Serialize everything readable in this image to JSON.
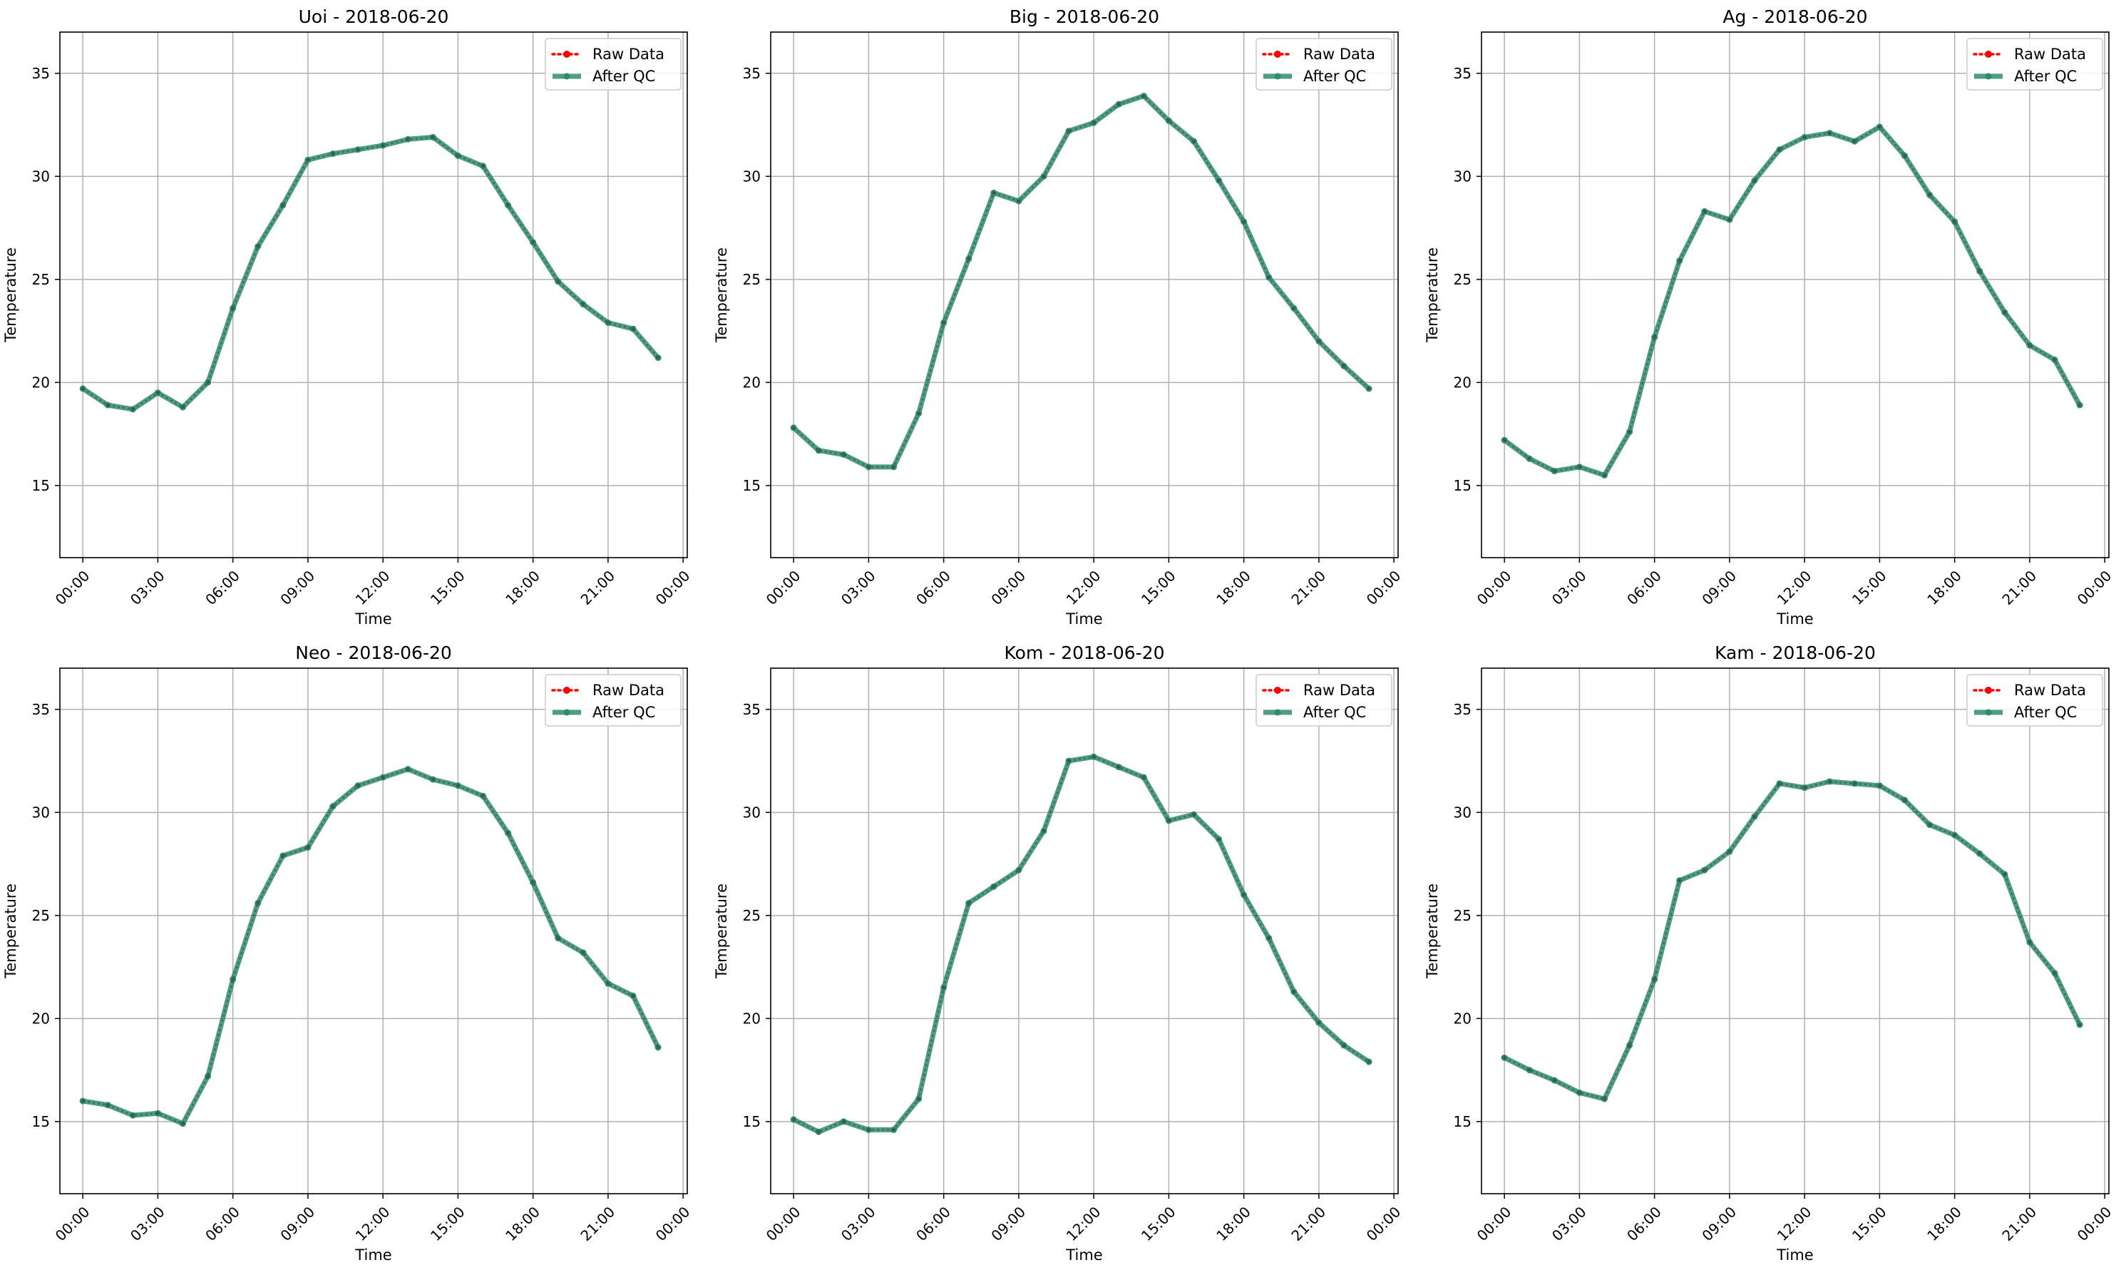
{
  "chart_data": [
    {
      "type": "line",
      "title": "Uoi - 2018-06-20",
      "xlabel": "Time",
      "ylabel": "Temperature",
      "x": [
        "00:00",
        "01:00",
        "02:00",
        "03:00",
        "04:00",
        "05:00",
        "06:00",
        "07:00",
        "08:00",
        "09:00",
        "10:00",
        "11:00",
        "12:00",
        "13:00",
        "14:00",
        "15:00",
        "16:00",
        "17:00",
        "18:00",
        "19:00",
        "20:00",
        "21:00",
        "22:00",
        "23:00"
      ],
      "xticks": [
        "00:00",
        "03:00",
        "06:00",
        "09:00",
        "12:00",
        "15:00",
        "18:00",
        "21:00",
        "00:00"
      ],
      "xlim": [
        "23:05",
        "24:10"
      ],
      "yticks": [
        15,
        20,
        25,
        30,
        35
      ],
      "ylim": [
        11.5,
        37
      ],
      "grid": true,
      "legend": "upper-right",
      "series": [
        {
          "name": "Raw Data",
          "color": "#ff0000",
          "style": "dotted-markers",
          "values": [
            19.7,
            18.9,
            18.7,
            19.5,
            18.8,
            20.0,
            23.6,
            26.6,
            28.6,
            30.8,
            31.1,
            31.3,
            31.5,
            31.8,
            31.9,
            31.0,
            30.5,
            28.6,
            26.8,
            24.9,
            23.8,
            22.9,
            22.6,
            21.2
          ]
        },
        {
          "name": "After QC",
          "color": "#2e8b6f",
          "style": "solid-markers",
          "values": [
            19.7,
            18.9,
            18.7,
            19.5,
            18.8,
            20.0,
            23.6,
            26.6,
            28.6,
            30.8,
            31.1,
            31.3,
            31.5,
            31.8,
            31.9,
            31.0,
            30.5,
            28.6,
            26.8,
            24.9,
            23.8,
            22.9,
            22.6,
            21.2
          ]
        }
      ]
    },
    {
      "type": "line",
      "title": "Big - 2018-06-20",
      "xlabel": "Time",
      "ylabel": "Temperature",
      "x": [
        "00:00",
        "01:00",
        "02:00",
        "03:00",
        "04:00",
        "05:00",
        "06:00",
        "07:00",
        "08:00",
        "09:00",
        "10:00",
        "11:00",
        "12:00",
        "13:00",
        "14:00",
        "15:00",
        "16:00",
        "17:00",
        "18:00",
        "19:00",
        "20:00",
        "21:00",
        "22:00",
        "23:00"
      ],
      "xticks": [
        "00:00",
        "03:00",
        "06:00",
        "09:00",
        "12:00",
        "15:00",
        "18:00",
        "21:00",
        "00:00"
      ],
      "xlim": [
        "23:05",
        "24:10"
      ],
      "yticks": [
        15,
        20,
        25,
        30,
        35
      ],
      "ylim": [
        11.5,
        37
      ],
      "grid": true,
      "legend": "upper-right",
      "series": [
        {
          "name": "Raw Data",
          "color": "#ff0000",
          "style": "dotted-markers",
          "values": [
            17.8,
            16.7,
            16.5,
            15.9,
            15.9,
            18.5,
            22.9,
            26.0,
            29.2,
            28.8,
            30.0,
            32.2,
            32.6,
            33.5,
            33.9,
            32.7,
            31.7,
            29.8,
            27.8,
            25.1,
            23.6,
            22.0,
            20.8,
            19.7
          ]
        },
        {
          "name": "After QC",
          "color": "#2e8b6f",
          "style": "solid-markers",
          "values": [
            17.8,
            16.7,
            16.5,
            15.9,
            15.9,
            18.5,
            22.9,
            26.0,
            29.2,
            28.8,
            30.0,
            32.2,
            32.6,
            33.5,
            33.9,
            32.7,
            31.7,
            29.8,
            27.8,
            25.1,
            23.6,
            22.0,
            20.8,
            19.7
          ]
        }
      ]
    },
    {
      "type": "line",
      "title": "Ag - 2018-06-20",
      "xlabel": "Time",
      "ylabel": "Temperature",
      "x": [
        "00:00",
        "01:00",
        "02:00",
        "03:00",
        "04:00",
        "05:00",
        "06:00",
        "07:00",
        "08:00",
        "09:00",
        "10:00",
        "11:00",
        "12:00",
        "13:00",
        "14:00",
        "15:00",
        "16:00",
        "17:00",
        "18:00",
        "19:00",
        "20:00",
        "21:00",
        "22:00",
        "23:00"
      ],
      "xticks": [
        "00:00",
        "03:00",
        "06:00",
        "09:00",
        "12:00",
        "15:00",
        "18:00",
        "21:00",
        "00:00"
      ],
      "xlim": [
        "23:05",
        "24:10"
      ],
      "yticks": [
        15,
        20,
        25,
        30,
        35
      ],
      "ylim": [
        11.5,
        37
      ],
      "grid": true,
      "legend": "upper-right",
      "series": [
        {
          "name": "Raw Data",
          "color": "#ff0000",
          "style": "dotted-markers",
          "values": [
            17.2,
            16.3,
            15.7,
            15.9,
            15.5,
            17.6,
            22.2,
            25.9,
            28.3,
            27.9,
            29.8,
            31.3,
            31.9,
            32.1,
            31.7,
            32.4,
            31.0,
            29.1,
            27.8,
            25.4,
            23.4,
            21.8,
            21.1,
            18.9
          ]
        },
        {
          "name": "After QC",
          "color": "#2e8b6f",
          "style": "solid-markers",
          "values": [
            17.2,
            16.3,
            15.7,
            15.9,
            15.5,
            17.6,
            22.2,
            25.9,
            28.3,
            27.9,
            29.8,
            31.3,
            31.9,
            32.1,
            31.7,
            32.4,
            31.0,
            29.1,
            27.8,
            25.4,
            23.4,
            21.8,
            21.1,
            18.9
          ]
        }
      ]
    },
    {
      "type": "line",
      "title": "Neo - 2018-06-20",
      "xlabel": "Time",
      "ylabel": "Temperature",
      "x": [
        "00:00",
        "01:00",
        "02:00",
        "03:00",
        "04:00",
        "05:00",
        "06:00",
        "07:00",
        "08:00",
        "09:00",
        "10:00",
        "11:00",
        "12:00",
        "13:00",
        "14:00",
        "15:00",
        "16:00",
        "17:00",
        "18:00",
        "19:00",
        "20:00",
        "21:00",
        "22:00",
        "23:00"
      ],
      "xticks": [
        "00:00",
        "03:00",
        "06:00",
        "09:00",
        "12:00",
        "15:00",
        "18:00",
        "21:00",
        "00:00"
      ],
      "xlim": [
        "23:05",
        "24:10"
      ],
      "yticks": [
        15,
        20,
        25,
        30,
        35
      ],
      "ylim": [
        11.5,
        37
      ],
      "grid": true,
      "legend": "upper-right",
      "series": [
        {
          "name": "Raw Data",
          "color": "#ff0000",
          "style": "dotted-markers",
          "values": [
            16.0,
            15.8,
            15.3,
            15.4,
            14.9,
            17.2,
            21.9,
            25.6,
            27.9,
            28.3,
            30.3,
            31.3,
            31.7,
            32.1,
            31.6,
            31.3,
            30.8,
            29.0,
            26.6,
            23.9,
            23.2,
            21.7,
            21.1,
            18.6
          ]
        },
        {
          "name": "After QC",
          "color": "#2e8b6f",
          "style": "solid-markers",
          "values": [
            16.0,
            15.8,
            15.3,
            15.4,
            14.9,
            17.2,
            21.9,
            25.6,
            27.9,
            28.3,
            30.3,
            31.3,
            31.7,
            32.1,
            31.6,
            31.3,
            30.8,
            29.0,
            26.6,
            23.9,
            23.2,
            21.7,
            21.1,
            18.6
          ]
        }
      ]
    },
    {
      "type": "line",
      "title": "Kom - 2018-06-20",
      "xlabel": "Time",
      "ylabel": "Temperature",
      "x": [
        "00:00",
        "01:00",
        "02:00",
        "03:00",
        "04:00",
        "05:00",
        "06:00",
        "07:00",
        "08:00",
        "09:00",
        "10:00",
        "11:00",
        "12:00",
        "13:00",
        "14:00",
        "15:00",
        "16:00",
        "17:00",
        "18:00",
        "19:00",
        "20:00",
        "21:00",
        "22:00",
        "23:00"
      ],
      "xticks": [
        "00:00",
        "03:00",
        "06:00",
        "09:00",
        "12:00",
        "15:00",
        "18:00",
        "21:00",
        "00:00"
      ],
      "xlim": [
        "23:05",
        "24:10"
      ],
      "yticks": [
        15,
        20,
        25,
        30,
        35
      ],
      "ylim": [
        11.5,
        37
      ],
      "grid": true,
      "legend": "upper-right",
      "series": [
        {
          "name": "Raw Data",
          "color": "#ff0000",
          "style": "dotted-markers",
          "values": [
            15.1,
            14.5,
            15.0,
            14.6,
            14.6,
            16.1,
            21.5,
            25.6,
            26.4,
            27.2,
            29.1,
            32.5,
            32.7,
            32.2,
            31.7,
            29.6,
            29.9,
            28.7,
            26.0,
            23.9,
            21.3,
            19.8,
            18.7,
            17.9
          ]
        },
        {
          "name": "After QC",
          "color": "#2e8b6f",
          "style": "solid-markers",
          "values": [
            15.1,
            14.5,
            15.0,
            14.6,
            14.6,
            16.1,
            21.5,
            25.6,
            26.4,
            27.2,
            29.1,
            32.5,
            32.7,
            32.2,
            31.7,
            29.6,
            29.9,
            28.7,
            26.0,
            23.9,
            21.3,
            19.8,
            18.7,
            17.9
          ]
        }
      ]
    },
    {
      "type": "line",
      "title": "Kam - 2018-06-20",
      "xlabel": "Time",
      "ylabel": "Temperature",
      "x": [
        "00:00",
        "01:00",
        "02:00",
        "03:00",
        "04:00",
        "05:00",
        "06:00",
        "07:00",
        "08:00",
        "09:00",
        "10:00",
        "11:00",
        "12:00",
        "13:00",
        "14:00",
        "15:00",
        "16:00",
        "17:00",
        "18:00",
        "19:00",
        "20:00",
        "21:00",
        "22:00",
        "23:00"
      ],
      "xticks": [
        "00:00",
        "03:00",
        "06:00",
        "09:00",
        "12:00",
        "15:00",
        "18:00",
        "21:00",
        "00:00"
      ],
      "xlim": [
        "23:05",
        "24:10"
      ],
      "yticks": [
        15,
        20,
        25,
        30,
        35
      ],
      "ylim": [
        11.5,
        37
      ],
      "grid": true,
      "legend": "upper-right",
      "series": [
        {
          "name": "Raw Data",
          "color": "#ff0000",
          "style": "dotted-markers",
          "values": [
            18.1,
            17.5,
            17.0,
            16.4,
            16.1,
            18.7,
            21.9,
            26.7,
            27.2,
            28.1,
            29.8,
            31.4,
            31.2,
            31.5,
            31.4,
            31.3,
            30.6,
            29.4,
            28.9,
            28.0,
            27.0,
            23.7,
            22.2,
            19.7
          ]
        },
        {
          "name": "After QC",
          "color": "#2e8b6f",
          "style": "solid-markers",
          "values": [
            18.1,
            17.5,
            17.0,
            16.4,
            16.1,
            18.7,
            21.9,
            26.7,
            27.2,
            28.1,
            29.8,
            31.4,
            31.2,
            31.5,
            31.4,
            31.3,
            30.6,
            29.4,
            28.9,
            28.0,
            27.0,
            23.7,
            22.2,
            19.7
          ]
        }
      ]
    }
  ]
}
